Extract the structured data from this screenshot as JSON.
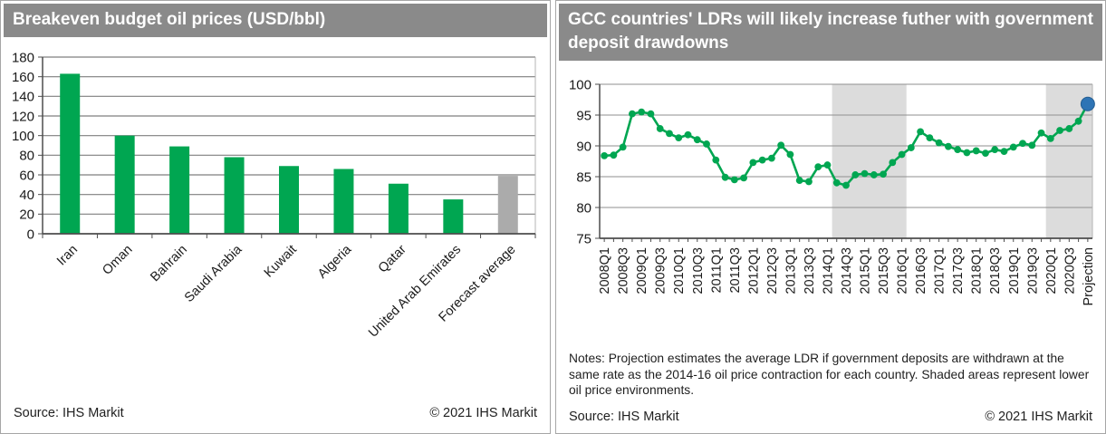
{
  "left_panel": {
    "title": "Breakeven budget oil prices (USD/bbl)",
    "source": "Source: IHS Markit",
    "copyright": "© 2021 IHS Markit"
  },
  "right_panel": {
    "title": "GCC countries' LDRs will likely increase futher with government deposit drawdowns",
    "notes": "Notes: Projection estimates the average LDR if government deposits are withdrawn at the same rate as the 2014-16 oil price contraction for each country. Shaded areas represent lower oil price environments.",
    "source": "Source: IHS Markit",
    "copyright": "© 2021 IHS Markit"
  },
  "chart_data": [
    {
      "type": "bar",
      "title": "Breakeven budget oil prices (USD/bbl)",
      "categories": [
        "Iran",
        "Oman",
        "Bahrain",
        "Saudi Arabia",
        "Kuwait",
        "Algeria",
        "Qatar",
        "United Arab Emirates",
        "Forecast average"
      ],
      "values": [
        163,
        100,
        89,
        78,
        69,
        66,
        51,
        35,
        59
      ],
      "bar_colors": [
        "#00A651",
        "#00A651",
        "#00A651",
        "#00A651",
        "#00A651",
        "#00A651",
        "#00A651",
        "#00A651",
        "#ABABAB"
      ],
      "xlabel": "",
      "ylabel": "",
      "ylim": [
        0,
        180
      ],
      "ytick_step": 20,
      "grid": true,
      "legend": "none",
      "colors": {
        "grid": "#7f7f7f",
        "axis": "#4d4d4d",
        "plot_edge": "#b5b5b5"
      }
    },
    {
      "type": "line",
      "title": "GCC countries' LDRs will likely increase futher with government deposit drawdowns",
      "x": [
        "2008Q1",
        "2008Q2",
        "2008Q3",
        "2008Q4",
        "2009Q1",
        "2009Q2",
        "2009Q3",
        "2009Q4",
        "2010Q1",
        "2010Q2",
        "2010Q3",
        "2010Q4",
        "2011Q1",
        "2011Q2",
        "2011Q3",
        "2011Q4",
        "2012Q1",
        "2012Q2",
        "2012Q3",
        "2012Q4",
        "2013Q1",
        "2013Q2",
        "2013Q3",
        "2013Q4",
        "2014Q1",
        "2014Q2",
        "2014Q3",
        "2014Q4",
        "2015Q1",
        "2015Q2",
        "2015Q3",
        "2015Q4",
        "2016Q1",
        "2016Q2",
        "2016Q3",
        "2016Q4",
        "2017Q1",
        "2017Q2",
        "2017Q3",
        "2017Q4",
        "2018Q1",
        "2018Q2",
        "2018Q3",
        "2018Q4",
        "2019Q1",
        "2019Q2",
        "2019Q3",
        "2019Q4",
        "2020Q1",
        "2020Q2",
        "2020Q3",
        "2020Q4",
        "Projection"
      ],
      "values": [
        88.4,
        88.5,
        89.8,
        95.2,
        95.5,
        95.2,
        92.8,
        92.0,
        91.3,
        91.8,
        91.0,
        90.3,
        87.7,
        84.9,
        84.5,
        84.8,
        87.3,
        87.7,
        88.0,
        90.1,
        88.6,
        84.4,
        84.2,
        86.6,
        86.9,
        84.0,
        83.6,
        85.3,
        85.5,
        85.3,
        85.4,
        87.3,
        88.6,
        89.7,
        92.3,
        91.3,
        90.5,
        89.9,
        89.4,
        88.9,
        89.2,
        88.8,
        89.4,
        89.1,
        89.8,
        90.4,
        90.1,
        92.1,
        91.2,
        92.5,
        92.8,
        94.0,
        96.8
      ],
      "xtick_every": 2,
      "xlabel": "",
      "ylabel": "",
      "ylim": [
        75,
        100
      ],
      "ytick_step": 5,
      "grid": true,
      "legend": "none",
      "shaded_regions": [
        [
          24.5,
          32.5
        ],
        [
          47.5,
          52.5
        ]
      ],
      "projection_point_index": 52,
      "colors": {
        "line": "#00A651",
        "projection": "#2E74B5",
        "shade": "#DCDCDC",
        "grid": "#8f8f8f",
        "axis": "#4d4d4d",
        "plot_edge": "#b5b5b5"
      }
    }
  ]
}
